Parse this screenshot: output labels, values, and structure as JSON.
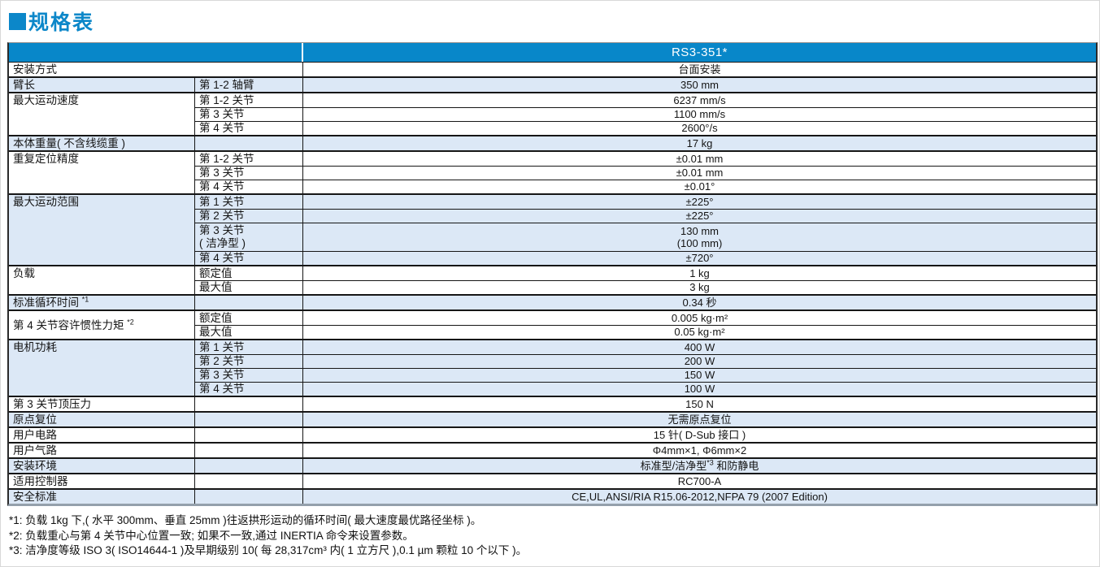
{
  "title": {
    "text": "规格表"
  },
  "colors": {
    "header_blue": "#0887c9",
    "band_blue": "#dce8f6",
    "title_blue": "#0c87c9"
  },
  "table": {
    "header": {
      "model": "RS3-351*"
    },
    "groups": [
      {
        "label": "安装方式",
        "merged": true,
        "shaded": false,
        "rows": [
          {
            "value": "台面安装"
          }
        ]
      },
      {
        "label": "臂长",
        "shaded": true,
        "rows": [
          {
            "sub": "第 1-2 轴臂",
            "value": "350 mm"
          }
        ]
      },
      {
        "label": "最大运动速度",
        "shaded": false,
        "rows": [
          {
            "sub": "第 1-2 关节",
            "value": "6237 mm/s"
          },
          {
            "sub": "第 3 关节",
            "value": "1100 mm/s"
          },
          {
            "sub": "第 4 关节",
            "value": "2600°/s"
          }
        ]
      },
      {
        "label": "本体重量( 不含线缆重 )",
        "shaded": true,
        "rows": [
          {
            "sub": "",
            "value": "17 kg"
          }
        ]
      },
      {
        "label": "重复定位精度",
        "shaded": false,
        "rows": [
          {
            "sub": "第 1-2 关节",
            "value": "±0.01 mm"
          },
          {
            "sub": "第 3 关节",
            "value": "±0.01 mm"
          },
          {
            "sub": "第 4 关节",
            "value": "±0.01°"
          }
        ]
      },
      {
        "label": "最大运动范围",
        "shaded": true,
        "rows": [
          {
            "sub": "第 1 关节",
            "value": "±225°"
          },
          {
            "sub": "第 2 关节",
            "value": "±225°"
          },
          {
            "sub": [
              "第 3 关节",
              "( 洁净型 )"
            ],
            "value": [
              "130 mm",
              "(100 mm)"
            ],
            "tall": true
          },
          {
            "sub": "第 4 关节",
            "value": "±720°"
          }
        ]
      },
      {
        "label": "负载",
        "shaded": false,
        "rows": [
          {
            "sub": "额定值",
            "value": "1 kg"
          },
          {
            "sub": "最大值",
            "value": "3 kg"
          }
        ]
      },
      {
        "label": "标准循环时间",
        "label_sup": "*1",
        "shaded": true,
        "rows": [
          {
            "sub": "",
            "value": "0.34 秒"
          }
        ]
      },
      {
        "label": "第 4 关节容许惯性力矩",
        "label_sup": "*2",
        "shaded": false,
        "v_center": true,
        "rows": [
          {
            "sub": "额定值",
            "value": "0.005 kg·m²"
          },
          {
            "sub": "最大值",
            "value": "0.05 kg·m²"
          }
        ]
      },
      {
        "label": "电机功耗",
        "shaded": true,
        "rows": [
          {
            "sub": "第 1 关节",
            "value": "400 W"
          },
          {
            "sub": "第 2 关节",
            "value": "200 W"
          },
          {
            "sub": "第 3 关节",
            "value": "150 W"
          },
          {
            "sub": "第 4 关节",
            "value": "100 W"
          }
        ]
      },
      {
        "label": "第 3 关节顶压力",
        "shaded": false,
        "rows": [
          {
            "sub": "",
            "value": "150 N"
          }
        ]
      },
      {
        "label": "原点复位",
        "shaded": true,
        "rows": [
          {
            "sub": "",
            "value": "无需原点复位"
          }
        ]
      },
      {
        "label": "用户电路",
        "shaded": false,
        "rows": [
          {
            "sub": "",
            "value": "15 针( D-Sub 接口 )"
          }
        ]
      },
      {
        "label": "用户气路",
        "shaded": false,
        "rows": [
          {
            "sub": "",
            "value": "Φ4mm×1, Φ6mm×2"
          }
        ]
      },
      {
        "label": "安装环境",
        "shaded": true,
        "rows": [
          {
            "sub": "",
            "value_parts": [
              "标准型/洁净型",
              {
                "sup": "*3"
              },
              " 和防静电"
            ]
          }
        ]
      },
      {
        "label": "适用控制器",
        "shaded": false,
        "rows": [
          {
            "sub": "",
            "value": "RC700-A"
          }
        ]
      },
      {
        "label": "安全标准",
        "shaded": true,
        "rows": [
          {
            "sub": "",
            "value": "CE,UL,ANSI/RIA R15.06-2012,NFPA 79 (2007 Edition)"
          }
        ]
      }
    ]
  },
  "footnotes": [
    "*1: 负载 1kg 下,( 水平 300mm、垂直 25mm )往返拱形运动的循环时间( 最大速度最优路径坐标 )。",
    "*2: 负载重心与第 4 关节中心位置一致; 如果不一致,通过 INERTIA 命令来设置参数。",
    "*3: 洁净度等级 ISO 3( ISO14644-1 )及早期级别 10( 每 28,317cm³ 内( 1 立方尺 ),0.1 µm 颗粒 10 个以下 )。"
  ]
}
